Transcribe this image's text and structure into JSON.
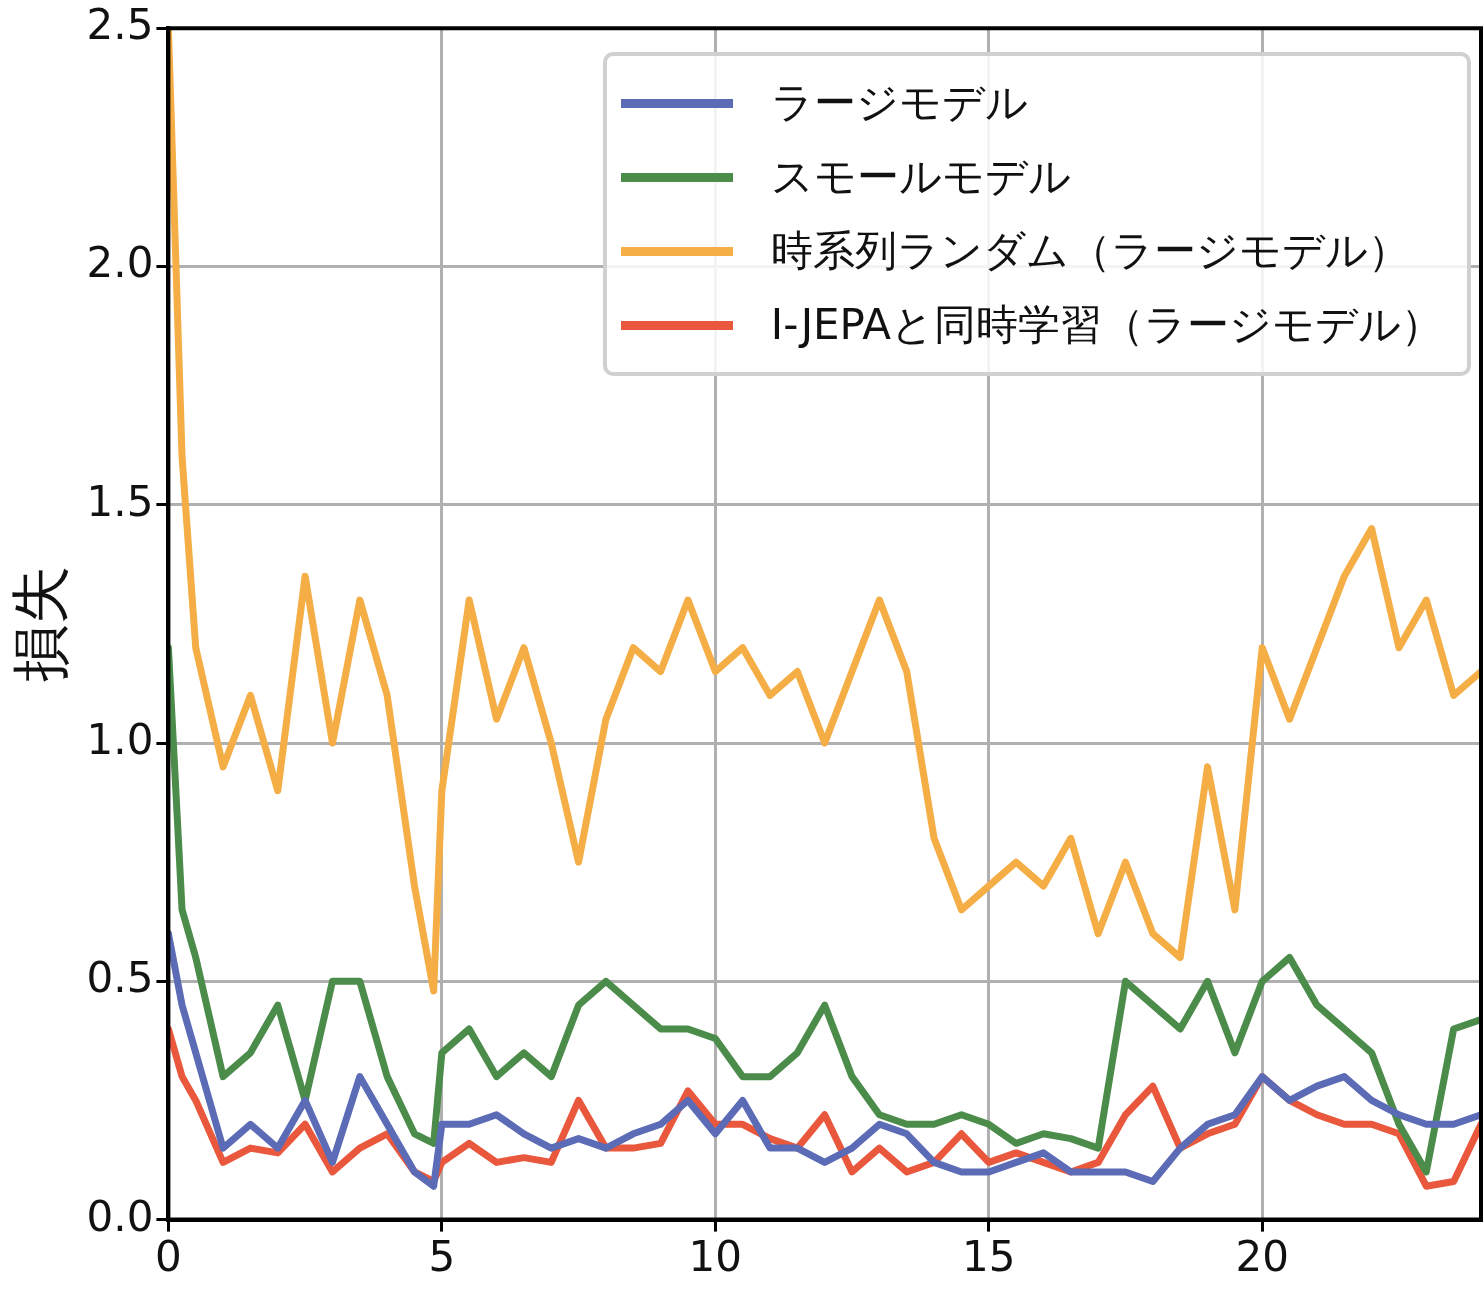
{
  "chart_data": {
    "type": "line",
    "ylabel": "損失",
    "xlim": [
      0,
      24
    ],
    "ylim": [
      0,
      2.5
    ],
    "xticks": [
      0,
      5,
      10,
      15,
      20
    ],
    "yticks": [
      {
        "value": 0,
        "label": "0.0"
      },
      {
        "value": 0.5,
        "label": "0.5"
      },
      {
        "value": 1,
        "label": "1.0"
      },
      {
        "value": 1.5,
        "label": "1.5"
      },
      {
        "value": 2,
        "label": "2.0"
      },
      {
        "value": 2.5,
        "label": "2.5"
      }
    ],
    "grid": true,
    "legend": "top right",
    "marker": "none",
    "line_style": "solid",
    "x": [
      0,
      0.25,
      0.5,
      1,
      1.5,
      2,
      2.5,
      3,
      3.5,
      4,
      4.5,
      4.85,
      5,
      5.5,
      6,
      6.5,
      7,
      7.5,
      8,
      8.5,
      9,
      9.5,
      10,
      10.5,
      11,
      11.5,
      12,
      12.5,
      13,
      13.5,
      14,
      14.5,
      15,
      15.5,
      16,
      16.5,
      17,
      17.5,
      18,
      18.5,
      19,
      19.5,
      20,
      20.5,
      21,
      21.5,
      22,
      22.5,
      23,
      23.5,
      24
    ],
    "series": [
      {
        "name": "ラージモデル",
        "color": "#5b6bb5",
        "values": [
          0.6,
          0.45,
          0.35,
          0.15,
          0.2,
          0.15,
          0.25,
          0.12,
          0.3,
          0.2,
          0.1,
          0.07,
          0.2,
          0.2,
          0.22,
          0.18,
          0.15,
          0.17,
          0.15,
          0.18,
          0.2,
          0.25,
          0.18,
          0.25,
          0.15,
          0.15,
          0.12,
          0.15,
          0.2,
          0.18,
          0.12,
          0.1,
          0.1,
          0.12,
          0.14,
          0.1,
          0.1,
          0.1,
          0.08,
          0.15,
          0.2,
          0.22,
          0.3,
          0.25,
          0.28,
          0.3,
          0.25,
          0.22,
          0.2,
          0.2,
          0.22
        ]
      },
      {
        "name": "スモールモデル",
        "color": "#4c8c4a",
        "values": [
          1.2,
          0.65,
          0.55,
          0.3,
          0.35,
          0.45,
          0.25,
          0.5,
          0.5,
          0.3,
          0.18,
          0.16,
          0.35,
          0.4,
          0.3,
          0.35,
          0.3,
          0.45,
          0.5,
          0.45,
          0.4,
          0.4,
          0.38,
          0.3,
          0.3,
          0.35,
          0.45,
          0.3,
          0.22,
          0.2,
          0.2,
          0.22,
          0.2,
          0.16,
          0.18,
          0.17,
          0.15,
          0.5,
          0.45,
          0.4,
          0.5,
          0.35,
          0.5,
          0.55,
          0.45,
          0.4,
          0.35,
          0.2,
          0.1,
          0.4,
          0.42
        ]
      },
      {
        "name": "時系列ランダム（ラージモデル）",
        "color": "#f5ad45",
        "values": [
          2.5,
          1.6,
          1.2,
          0.95,
          1.1,
          0.9,
          1.35,
          1.0,
          1.3,
          1.1,
          0.7,
          0.48,
          0.9,
          1.3,
          1.05,
          1.2,
          1.0,
          0.75,
          1.05,
          1.2,
          1.15,
          1.3,
          1.15,
          1.2,
          1.1,
          1.15,
          1.0,
          1.15,
          1.3,
          1.15,
          0.8,
          0.65,
          0.7,
          0.75,
          0.7,
          0.8,
          0.6,
          0.75,
          0.6,
          0.55,
          0.95,
          0.65,
          1.2,
          1.05,
          1.2,
          1.35,
          1.45,
          1.2,
          1.3,
          1.1,
          1.15
        ]
      },
      {
        "name": "I-JEPAと同時学習（ラージモデル）",
        "color": "#e9573d",
        "values": [
          0.4,
          0.3,
          0.25,
          0.12,
          0.15,
          0.14,
          0.2,
          0.1,
          0.15,
          0.18,
          0.1,
          0.08,
          0.12,
          0.16,
          0.12,
          0.13,
          0.12,
          0.25,
          0.15,
          0.15,
          0.16,
          0.27,
          0.2,
          0.2,
          0.17,
          0.15,
          0.22,
          0.1,
          0.15,
          0.1,
          0.12,
          0.18,
          0.12,
          0.14,
          0.12,
          0.1,
          0.12,
          0.22,
          0.28,
          0.15,
          0.18,
          0.2,
          0.3,
          0.25,
          0.22,
          0.2,
          0.2,
          0.18,
          0.07,
          0.08,
          0.2
        ]
      }
    ]
  }
}
